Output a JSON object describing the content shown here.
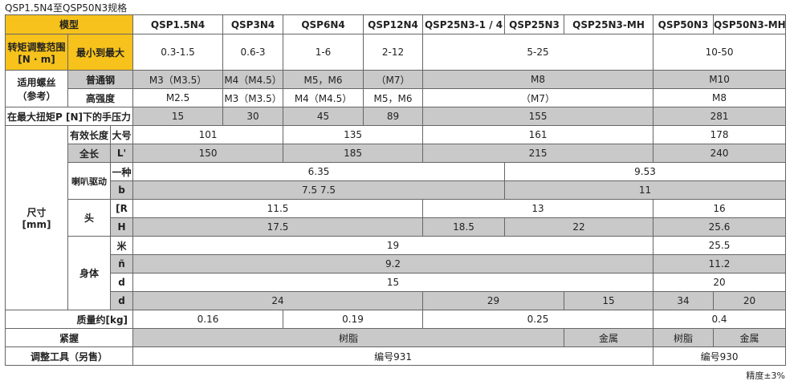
{
  "title": "QSP1.5N4至QSP50N3规格",
  "table": {
    "rows": [
      [
        "模型",
        "QSP1.5N4",
        "QSP3N4",
        "QSP6N4",
        "QSP12N4",
        "QSP25N3-1 / 4",
        "QSP25N3",
        "QSP25N3-MH",
        "QSP50N3",
        "QSP50N3-MH"
      ],
      [
        [
          "转矩调整范围",
          "[N · m]"
        ],
        "最小到最大",
        "0.3-1.5",
        "0.6-3",
        "1-6",
        "2-12",
        "5-25",
        "10-50"
      ],
      [
        [
          "适用螺丝",
          "（参考）"
        ],
        "普通钢",
        "M3（M3.5）",
        "M4（M4.5）",
        "M5，M6",
        "（M7）",
        "M8",
        "M10"
      ],
      [
        "高强度",
        "M2.5",
        "M3（M3.5）",
        "M4（M4.5）",
        "M5，M6",
        "（M7）",
        "M8"
      ],
      [
        "在最大扭矩P [N]下的手压力",
        "15",
        "30",
        "45",
        "89",
        "155",
        "281"
      ],
      [
        [
          "尺寸",
          "[mm]"
        ],
        "有效长度",
        "大号",
        "101",
        "135",
        "161",
        "178"
      ],
      [
        "全长",
        "L'",
        "150",
        "185",
        "215",
        "240"
      ],
      [
        "喇叭驱动",
        "一种",
        "6.35",
        "9.53"
      ],
      [
        "b",
        "7.5 7.5",
        "11"
      ],
      [
        "头",
        "[R",
        "11.5",
        "13",
        "16"
      ],
      [
        "H",
        "17.5",
        "18.5",
        "22",
        "25.6"
      ],
      [
        "身体",
        "米",
        "19",
        "25.5"
      ],
      [
        "ñ",
        "9.2",
        "11.2"
      ],
      [
        "d",
        "15",
        "20"
      ],
      [
        "d",
        "24",
        "29",
        "15",
        "34",
        "20"
      ],
      [
        "质量约[kg]",
        "0.16",
        "0.19",
        "0.25",
        "0.4"
      ],
      [
        "紧握",
        "树脂",
        "金属",
        "树脂",
        "金属"
      ],
      [
        "调整工具（另售）",
        "编号931",
        "编号930"
      ]
    ]
  },
  "note": "精度±3%"
}
